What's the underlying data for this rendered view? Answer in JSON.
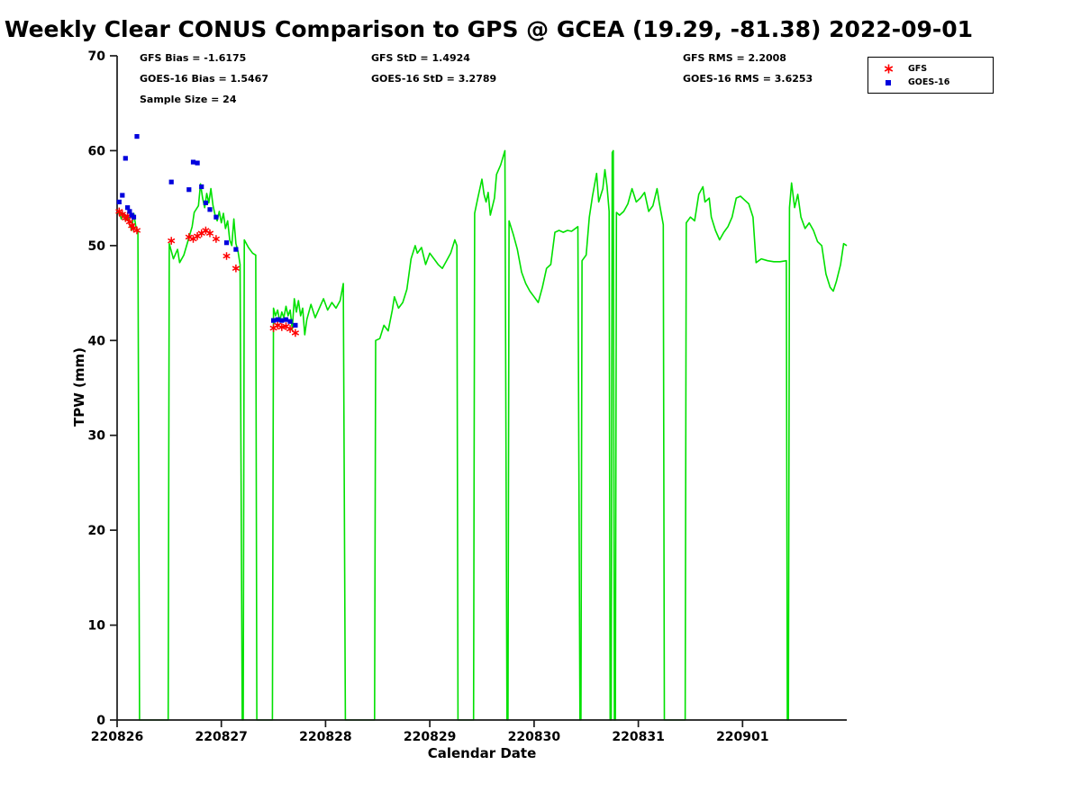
{
  "title": "Weekly Clear CONUS Comparison to GPS @ GCEA (19.29, -81.38) 2022-09-01",
  "stats": {
    "gfs_bias": "GFS Bias = -1.6175",
    "goes_bias": "GOES-16 Bias = 1.5467",
    "sample_size": "Sample Size = 24",
    "gfs_std": "GFS StD = 1.4924",
    "goes_std": "GOES-16 StD = 3.2789",
    "gfs_rms": "GFS RMS = 2.2008",
    "goes_rms": "GOES-16 RMS = 3.6253"
  },
  "legend": {
    "items": [
      {
        "label": "GFS",
        "marker": "asterisk",
        "color": "#ff0000"
      },
      {
        "label": "GOES-16",
        "marker": "square",
        "color": "#0000dd"
      }
    ]
  },
  "chart_data": {
    "type": "line",
    "title": "Weekly Clear CONUS Comparison to GPS @ GCEA (19.29, -81.38) 2022-09-01",
    "xlabel": "Calendar Date",
    "ylabel": "TPW (mm)",
    "xlim": [
      0,
      7
    ],
    "ylim": [
      0,
      70
    ],
    "y_ticks": [
      0,
      10,
      20,
      30,
      40,
      50,
      60,
      70
    ],
    "x_ticks": [
      "220826",
      "220827",
      "220828",
      "220829",
      "220830",
      "220831",
      "220901"
    ],
    "x_tick_days": [
      0,
      1,
      2,
      3,
      4,
      5,
      6
    ],
    "grid": false,
    "legend_position": "top-right",
    "series": [
      {
        "name": "GPS",
        "type": "line",
        "color": "#00e000",
        "points": [
          [
            0.0,
            53.3
          ],
          [
            0.02,
            53.6
          ],
          [
            0.04,
            52.8
          ],
          [
            0.06,
            53.4
          ],
          [
            0.08,
            52.6
          ],
          [
            0.1,
            53.2
          ],
          [
            0.12,
            52.2
          ],
          [
            0.14,
            51.6
          ],
          [
            0.16,
            53.4
          ],
          [
            0.18,
            52.0
          ],
          [
            0.2,
            51.5
          ],
          [
            0.215,
            0
          ],
          [
            0.49,
            0
          ],
          [
            0.5,
            50.2
          ],
          [
            0.54,
            48.6
          ],
          [
            0.58,
            49.6
          ],
          [
            0.6,
            48.2
          ],
          [
            0.64,
            49.0
          ],
          [
            0.68,
            50.5
          ],
          [
            0.72,
            52.0
          ],
          [
            0.74,
            53.5
          ],
          [
            0.78,
            54.2
          ],
          [
            0.8,
            56.5
          ],
          [
            0.82,
            55.0
          ],
          [
            0.84,
            54.0
          ],
          [
            0.86,
            55.5
          ],
          [
            0.88,
            54.5
          ],
          [
            0.9,
            56.0
          ],
          [
            0.92,
            54.2
          ],
          [
            0.94,
            53.2
          ],
          [
            0.96,
            52.6
          ],
          [
            0.98,
            53.6
          ],
          [
            1.0,
            52.4
          ],
          [
            1.02,
            53.4
          ],
          [
            1.04,
            51.8
          ],
          [
            1.06,
            52.6
          ],
          [
            1.08,
            50.6
          ],
          [
            1.1,
            50.0
          ],
          [
            1.12,
            52.8
          ],
          [
            1.14,
            50.2
          ],
          [
            1.16,
            49.4
          ],
          [
            1.18,
            48.0
          ],
          [
            1.2,
            0
          ],
          [
            1.21,
            0
          ],
          [
            1.22,
            50.6
          ],
          [
            1.26,
            49.8
          ],
          [
            1.3,
            49.2
          ],
          [
            1.33,
            49.0
          ],
          [
            1.34,
            0
          ],
          [
            1.49,
            0
          ],
          [
            1.5,
            43.4
          ],
          [
            1.52,
            42.6
          ],
          [
            1.54,
            43.2
          ],
          [
            1.56,
            42.0
          ],
          [
            1.58,
            43.0
          ],
          [
            1.6,
            42.4
          ],
          [
            1.62,
            43.6
          ],
          [
            1.64,
            42.6
          ],
          [
            1.66,
            43.2
          ],
          [
            1.68,
            41.2
          ],
          [
            1.7,
            44.4
          ],
          [
            1.72,
            43.0
          ],
          [
            1.74,
            44.2
          ],
          [
            1.76,
            42.6
          ],
          [
            1.78,
            43.4
          ],
          [
            1.8,
            40.6
          ],
          [
            1.82,
            42.2
          ],
          [
            1.84,
            43.0
          ],
          [
            1.86,
            43.8
          ],
          [
            1.9,
            42.4
          ],
          [
            1.94,
            43.4
          ],
          [
            1.98,
            44.4
          ],
          [
            2.02,
            43.2
          ],
          [
            2.06,
            44.0
          ],
          [
            2.1,
            43.4
          ],
          [
            2.14,
            44.2
          ],
          [
            2.17,
            46.0
          ],
          [
            2.19,
            0
          ],
          [
            2.47,
            0
          ],
          [
            2.48,
            40.0
          ],
          [
            2.52,
            40.2
          ],
          [
            2.56,
            41.6
          ],
          [
            2.6,
            41.0
          ],
          [
            2.64,
            43.2
          ],
          [
            2.66,
            44.6
          ],
          [
            2.7,
            43.4
          ],
          [
            2.74,
            44.0
          ],
          [
            2.78,
            45.4
          ],
          [
            2.8,
            47.0
          ],
          [
            2.82,
            48.6
          ],
          [
            2.86,
            50.0
          ],
          [
            2.88,
            49.2
          ],
          [
            2.92,
            49.8
          ],
          [
            2.96,
            48.0
          ],
          [
            3.0,
            49.2
          ],
          [
            3.04,
            48.6
          ],
          [
            3.08,
            48.0
          ],
          [
            3.12,
            47.6
          ],
          [
            3.16,
            48.4
          ],
          [
            3.2,
            49.2
          ],
          [
            3.24,
            50.6
          ],
          [
            3.26,
            50.0
          ],
          [
            3.27,
            0
          ],
          [
            3.42,
            0
          ],
          [
            3.43,
            53.4
          ],
          [
            3.46,
            55.0
          ],
          [
            3.5,
            57.0
          ],
          [
            3.52,
            55.4
          ],
          [
            3.54,
            54.6
          ],
          [
            3.56,
            55.6
          ],
          [
            3.58,
            53.2
          ],
          [
            3.62,
            55.0
          ],
          [
            3.64,
            57.5
          ],
          [
            3.68,
            58.5
          ],
          [
            3.72,
            60.0
          ],
          [
            3.74,
            0
          ],
          [
            3.75,
            0
          ],
          [
            3.76,
            52.6
          ],
          [
            3.8,
            51.2
          ],
          [
            3.84,
            49.6
          ],
          [
            3.88,
            47.2
          ],
          [
            3.92,
            46.0
          ],
          [
            3.96,
            45.2
          ],
          [
            4.0,
            44.6
          ],
          [
            4.04,
            44.0
          ],
          [
            4.08,
            45.6
          ],
          [
            4.12,
            47.6
          ],
          [
            4.16,
            48.0
          ],
          [
            4.2,
            51.4
          ],
          [
            4.24,
            51.6
          ],
          [
            4.28,
            51.4
          ],
          [
            4.32,
            51.6
          ],
          [
            4.36,
            51.5
          ],
          [
            4.42,
            52.0
          ],
          [
            4.44,
            0
          ],
          [
            4.45,
            0
          ],
          [
            4.46,
            48.4
          ],
          [
            4.5,
            49.0
          ],
          [
            4.53,
            53.0
          ],
          [
            4.56,
            55.2
          ],
          [
            4.6,
            57.6
          ],
          [
            4.62,
            54.6
          ],
          [
            4.66,
            56.0
          ],
          [
            4.68,
            58.0
          ],
          [
            4.7,
            56.2
          ],
          [
            4.72,
            53.6
          ],
          [
            4.73,
            0
          ],
          [
            4.74,
            0
          ],
          [
            4.75,
            59.8
          ],
          [
            4.76,
            60.0
          ],
          [
            4.77,
            0
          ],
          [
            4.78,
            0
          ],
          [
            4.79,
            53.5
          ],
          [
            4.82,
            53.2
          ],
          [
            4.86,
            53.6
          ],
          [
            4.9,
            54.4
          ],
          [
            4.94,
            56.0
          ],
          [
            4.98,
            54.6
          ],
          [
            5.02,
            55.0
          ],
          [
            5.06,
            55.6
          ],
          [
            5.1,
            53.6
          ],
          [
            5.14,
            54.2
          ],
          [
            5.18,
            56.0
          ],
          [
            5.2,
            54.6
          ],
          [
            5.24,
            52.2
          ],
          [
            5.25,
            0
          ],
          [
            5.45,
            0
          ],
          [
            5.46,
            52.4
          ],
          [
            5.5,
            53.0
          ],
          [
            5.54,
            52.6
          ],
          [
            5.58,
            55.4
          ],
          [
            5.62,
            56.2
          ],
          [
            5.64,
            54.6
          ],
          [
            5.68,
            55.0
          ],
          [
            5.7,
            53.0
          ],
          [
            5.74,
            51.6
          ],
          [
            5.78,
            50.6
          ],
          [
            5.82,
            51.4
          ],
          [
            5.86,
            52.0
          ],
          [
            5.9,
            53.0
          ],
          [
            5.94,
            55.0
          ],
          [
            5.98,
            55.2
          ],
          [
            6.02,
            54.8
          ],
          [
            6.06,
            54.4
          ],
          [
            6.1,
            53.0
          ],
          [
            6.13,
            48.2
          ],
          [
            6.18,
            48.6
          ],
          [
            6.24,
            48.4
          ],
          [
            6.3,
            48.3
          ],
          [
            6.36,
            48.3
          ],
          [
            6.42,
            48.4
          ],
          [
            6.43,
            0
          ],
          [
            6.44,
            0
          ],
          [
            6.45,
            54.0
          ],
          [
            6.47,
            56.6
          ],
          [
            6.5,
            54.0
          ],
          [
            6.53,
            55.4
          ],
          [
            6.56,
            53.0
          ],
          [
            6.6,
            51.8
          ],
          [
            6.64,
            52.4
          ],
          [
            6.68,
            51.6
          ],
          [
            6.72,
            50.4
          ],
          [
            6.76,
            50.0
          ],
          [
            6.8,
            47.0
          ],
          [
            6.84,
            45.6
          ],
          [
            6.87,
            45.2
          ],
          [
            6.9,
            46.2
          ],
          [
            6.94,
            48.0
          ],
          [
            6.97,
            50.2
          ],
          [
            7.0,
            50.0
          ]
        ]
      },
      {
        "name": "GFS",
        "type": "scatter",
        "marker": "asterisk",
        "color": "#ff0000",
        "points": [
          [
            0.02,
            53.6
          ],
          [
            0.05,
            53.3
          ],
          [
            0.08,
            52.9
          ],
          [
            0.1,
            53.1
          ],
          [
            0.12,
            52.5
          ],
          [
            0.14,
            52.1
          ],
          [
            0.16,
            51.8
          ],
          [
            0.19,
            51.6
          ],
          [
            0.52,
            50.5
          ],
          [
            0.69,
            50.9
          ],
          [
            0.73,
            50.7
          ],
          [
            0.77,
            51.0
          ],
          [
            0.81,
            51.3
          ],
          [
            0.85,
            51.6
          ],
          [
            0.89,
            51.3
          ],
          [
            0.95,
            50.7
          ],
          [
            1.05,
            48.9
          ],
          [
            1.14,
            47.6
          ],
          [
            1.5,
            41.3
          ],
          [
            1.54,
            41.6
          ],
          [
            1.58,
            41.4
          ],
          [
            1.62,
            41.5
          ],
          [
            1.66,
            41.2
          ],
          [
            1.71,
            40.8
          ]
        ]
      },
      {
        "name": "GOES-16",
        "type": "scatter",
        "marker": "square",
        "color": "#0000dd",
        "points": [
          [
            0.02,
            54.6
          ],
          [
            0.05,
            55.3
          ],
          [
            0.08,
            59.2
          ],
          [
            0.1,
            54.0
          ],
          [
            0.12,
            53.6
          ],
          [
            0.14,
            53.2
          ],
          [
            0.16,
            53.0
          ],
          [
            0.19,
            61.5
          ],
          [
            0.52,
            56.7
          ],
          [
            0.69,
            55.9
          ],
          [
            0.73,
            58.8
          ],
          [
            0.77,
            58.7
          ],
          [
            0.81,
            56.2
          ],
          [
            0.85,
            54.5
          ],
          [
            0.89,
            53.8
          ],
          [
            0.95,
            53.0
          ],
          [
            1.05,
            50.3
          ],
          [
            1.14,
            49.6
          ],
          [
            1.5,
            42.1
          ],
          [
            1.54,
            42.2
          ],
          [
            1.58,
            42.1
          ],
          [
            1.62,
            42.2
          ],
          [
            1.66,
            42.0
          ],
          [
            1.71,
            41.6
          ]
        ]
      }
    ]
  }
}
